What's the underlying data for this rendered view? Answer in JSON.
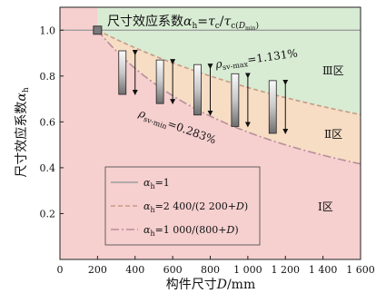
{
  "chart_data": {
    "type": "area",
    "title": "尺寸效应系数α_h=τ_c/τ_c(D_min)",
    "title_parts": {
      "main": "尺寸效应系数",
      "alpha": "α",
      "h": "h",
      "eq": "=",
      "tau": "τ",
      "c": "c",
      "slash": "/",
      "tau2": "τ",
      "c2": "c(",
      "dmin": "D",
      "min": "min",
      "close": ")"
    },
    "xlabel": "构件尺寸D/mm",
    "xlabel_parts": {
      "cn": "构件尺寸",
      "d": "D",
      "unit": "/mm"
    },
    "ylabel": "尺寸效应系数α_h",
    "ylabel_parts": {
      "cn": "尺寸效应系数",
      "alpha": "α",
      "h": "h"
    },
    "xlim": [
      0,
      1600
    ],
    "ylim": [
      0,
      1.1
    ],
    "x_ticks": [
      0,
      200,
      400,
      600,
      800,
      1000,
      1200,
      1400,
      1600
    ],
    "x_tick_labels": [
      "0",
      "200",
      "400",
      "600",
      "800",
      "1 000",
      "1 200",
      "1 400",
      "1 600"
    ],
    "y_ticks": [
      0.2,
      0.4,
      0.6,
      0.8,
      1.0
    ],
    "y_tick_labels": [
      "0.2",
      "0.4",
      "0.6",
      "0.8",
      "1.0"
    ],
    "series": [
      {
        "name": "α_h=1",
        "formula": "constant",
        "value": 1.0,
        "style": "solid",
        "color": "#9e9e9e"
      },
      {
        "name": "α_h=2 400/(2 200+D)",
        "formula": "2400/(2200+D)",
        "style": "dashed",
        "color": "#c99a86"
      },
      {
        "name": "α_h=1 000/(800+D)",
        "formula": "1000/(800+D)",
        "style": "dashdot",
        "color": "#b78e9a"
      }
    ],
    "legend_entries": [
      {
        "a": "α",
        "h": "h",
        "rest": "=1"
      },
      {
        "a": "α",
        "h": "h",
        "rest": "=2 400/(2 200+",
        "d": "D",
        "end": ")"
      },
      {
        "a": "α",
        "h": "h",
        "rest": "=1 000/(800+",
        "d": "D",
        "end": ")"
      }
    ],
    "legend_position": "lower-left",
    "regions": [
      {
        "name": "Ⅲ区",
        "color": "#d8ebd3"
      },
      {
        "name": "Ⅱ区",
        "color": "#f6ddc4"
      },
      {
        "name": "Ⅰ区",
        "color": "#f6cfcf"
      }
    ],
    "annotations": [
      {
        "rho": "ρ",
        "sub": "sv-max",
        "text": "=1.131%"
      },
      {
        "rho": "ρ",
        "sub": "sv-min",
        "text": "=0.283%"
      }
    ],
    "start_marker": {
      "x": 200,
      "y": 1.0,
      "color": "#7a7a7a"
    },
    "specimens": [
      {
        "x": 400,
        "top": 0.91,
        "bottom": 0.72
      },
      {
        "x": 600,
        "top": 0.87,
        "bottom": 0.68
      },
      {
        "x": 800,
        "top": 0.85,
        "bottom": 0.63
      },
      {
        "x": 1000,
        "top": 0.81,
        "bottom": 0.58
      },
      {
        "x": 1200,
        "top": 0.78,
        "bottom": 0.55
      }
    ],
    "grid": false
  },
  "colors": {
    "zone3": "#d8ebd3",
    "zone2": "#f6ddc4",
    "zone1": "#f6cfcf",
    "axis": "#222222"
  }
}
